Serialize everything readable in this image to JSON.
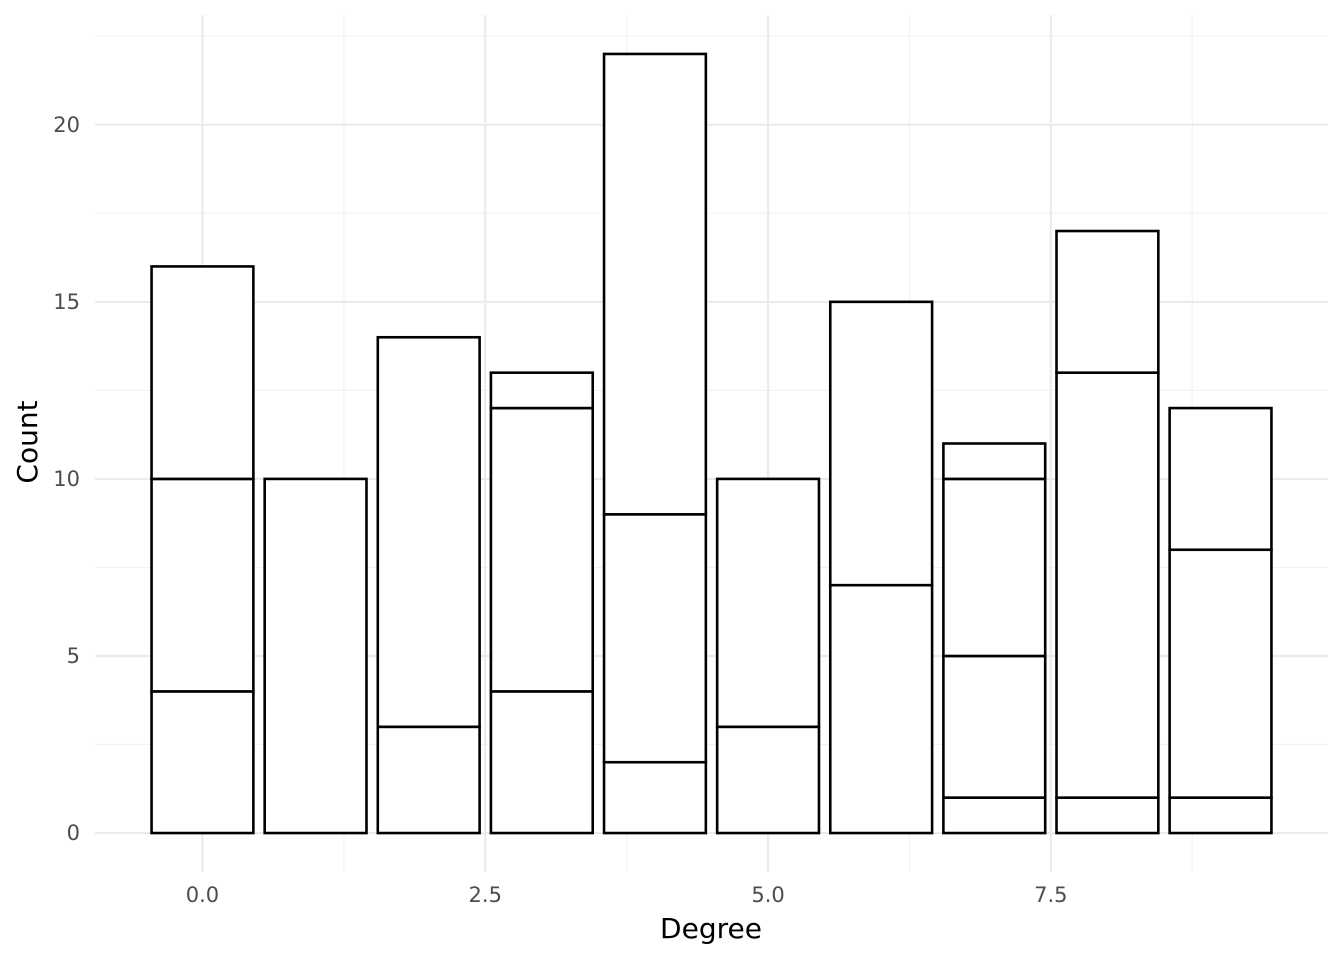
{
  "chart_data": {
    "type": "bar",
    "stacked": true,
    "title": "",
    "xlabel": "Degree",
    "ylabel": "Count",
    "xlim": [
      -0.95,
      9.95
    ],
    "ylim": [
      -1.1,
      23.1
    ],
    "x_ticks": [
      0.0,
      2.5,
      5.0,
      7.5
    ],
    "x_tick_labels": [
      "0.0",
      "2.5",
      "5.0",
      "7.5"
    ],
    "y_ticks": [
      0,
      5,
      10,
      15,
      20
    ],
    "y_tick_labels": [
      "0",
      "5",
      "10",
      "15",
      "20"
    ],
    "grid": true,
    "legend": "none",
    "bar_width": 0.9,
    "fill_color": "#ffffff",
    "stroke_color": "#000000",
    "bars": [
      {
        "x": 0,
        "total": 16,
        "boundaries": [
          4,
          10
        ]
      },
      {
        "x": 1,
        "total": 10,
        "boundaries": []
      },
      {
        "x": 2,
        "total": 14,
        "boundaries": [
          3
        ]
      },
      {
        "x": 3,
        "total": 13,
        "boundaries": [
          4,
          12
        ]
      },
      {
        "x": 4,
        "total": 22,
        "boundaries": [
          2,
          9
        ]
      },
      {
        "x": 5,
        "total": 10,
        "boundaries": [
          3
        ]
      },
      {
        "x": 6,
        "total": 15,
        "boundaries": [
          7
        ]
      },
      {
        "x": 7,
        "total": 11,
        "boundaries": [
          1,
          5,
          10
        ]
      },
      {
        "x": 8,
        "total": 17,
        "boundaries": [
          1,
          13
        ]
      },
      {
        "x": 9,
        "total": 12,
        "boundaries": [
          1,
          8
        ]
      }
    ]
  }
}
